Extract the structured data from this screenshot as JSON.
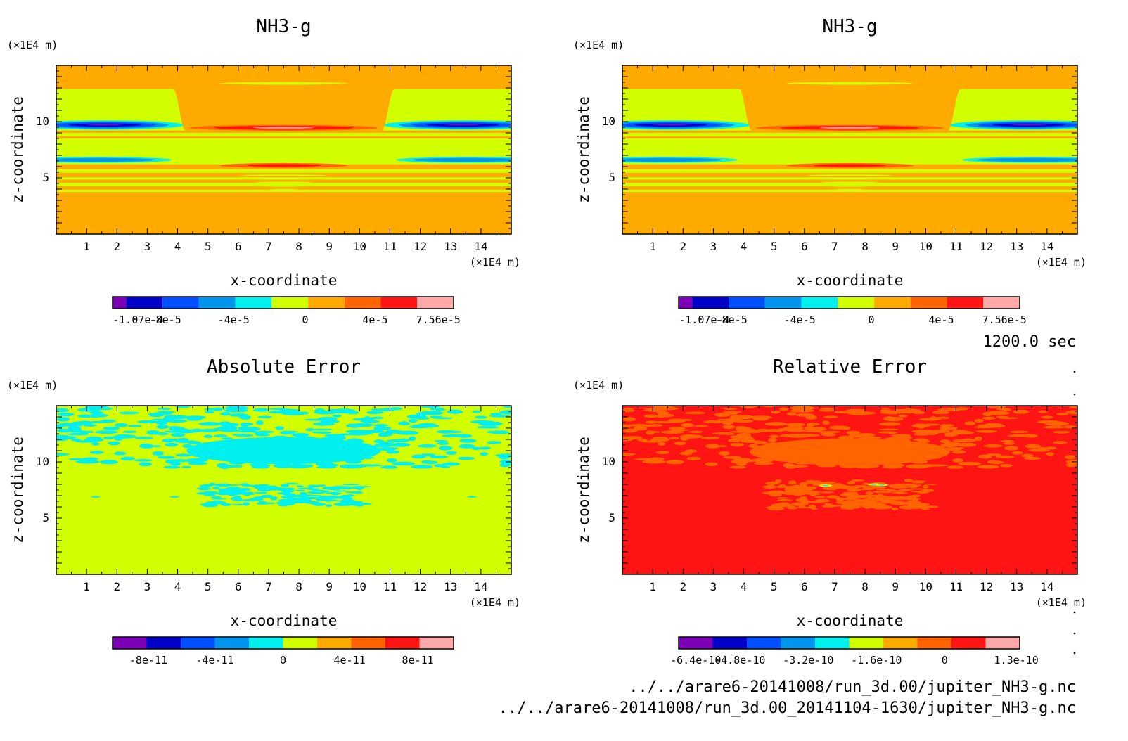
{
  "time_label": "1200.0 sec",
  "footer": [
    "../../arare6-20141008/run_3d.00/jupiter_NH3-g.nc",
    "../../arare6-20141008/run_3d.00_20141104-1630/jupiter_NH3-g.nc"
  ],
  "colors": {
    "purple": "#7b00b8",
    "navy": "#0000c8",
    "blue": "#0050ff",
    "sky": "#0096f0",
    "cyan": "#00f0f0",
    "yellowgreen": "#d2ff00",
    "orange": "#ffaa00",
    "orangered": "#ff6400",
    "red": "#ff1414",
    "pink": "#ffaaaa"
  },
  "chart_data": [
    {
      "type": "heatmap",
      "title": "NH3-g",
      "xlabel": "x-coordinate",
      "ylabel": "z-coordinate",
      "x_unit": "(×1E4 m)",
      "y_unit": "(×1E4 m)",
      "xlim": [
        0,
        15
      ],
      "ylim": [
        0,
        15
      ],
      "x_ticks": [
        1,
        2,
        3,
        4,
        5,
        6,
        7,
        8,
        9,
        10,
        11,
        12,
        13,
        14
      ],
      "y_ticks": [
        5,
        10
      ],
      "colorbar": {
        "levels": 9,
        "colors": [
          "purple",
          "navy",
          "blue",
          "sky",
          "cyan",
          "yellowgreen",
          "orange",
          "orangered",
          "red",
          "pink"
        ],
        "labels": [
          "-1.07e-4",
          "-8e-5",
          "-4e-5",
          "0",
          "4e-5",
          "7.56e-5"
        ]
      },
      "pattern": "field"
    },
    {
      "type": "heatmap",
      "title": "NH3-g",
      "xlabel": "x-coordinate",
      "ylabel": "z-coordinate",
      "x_unit": "(×1E4 m)",
      "y_unit": "(×1E4 m)",
      "xlim": [
        0,
        15
      ],
      "ylim": [
        0,
        15
      ],
      "x_ticks": [
        1,
        2,
        3,
        4,
        5,
        6,
        7,
        8,
        9,
        10,
        11,
        12,
        13,
        14
      ],
      "y_ticks": [
        5,
        10
      ],
      "colorbar": {
        "levels": 9,
        "colors": [
          "purple",
          "navy",
          "blue",
          "sky",
          "cyan",
          "yellowgreen",
          "orange",
          "orangered",
          "red",
          "pink"
        ],
        "labels": [
          "-1.07e-4",
          "-8e-5",
          "-4e-5",
          "0",
          "4e-5",
          "7.56e-5"
        ]
      },
      "pattern": "field"
    },
    {
      "type": "heatmap",
      "title": "Absolute Error",
      "xlabel": "x-coordinate",
      "ylabel": "z-coordinate",
      "x_unit": "(×1E4 m)",
      "y_unit": "(×1E4 m)",
      "xlim": [
        0,
        15
      ],
      "ylim": [
        0,
        15
      ],
      "x_ticks": [
        1,
        2,
        3,
        4,
        5,
        6,
        7,
        8,
        9,
        10,
        11,
        12,
        13,
        14
      ],
      "y_ticks": [
        5,
        10
      ],
      "colorbar": {
        "levels": 9,
        "colors": [
          "purple",
          "navy",
          "blue",
          "sky",
          "cyan",
          "yellowgreen",
          "orange",
          "orangered",
          "red",
          "pink"
        ],
        "labels": [
          "-8e-11",
          "-4e-11",
          "0",
          "4e-11",
          "8e-11"
        ]
      },
      "pattern": "abs"
    },
    {
      "type": "heatmap",
      "title": "Relative Error",
      "xlabel": "x-coordinate",
      "ylabel": "z-coordinate",
      "x_unit": "(×1E4 m)",
      "y_unit": "(×1E4 m)",
      "xlim": [
        0,
        15
      ],
      "ylim": [
        0,
        15
      ],
      "x_ticks": [
        1,
        2,
        3,
        4,
        5,
        6,
        7,
        8,
        9,
        10,
        11,
        12,
        13,
        14
      ],
      "y_ticks": [
        5,
        10
      ],
      "colorbar": {
        "levels": 9,
        "colors": [
          "purple",
          "navy",
          "blue",
          "sky",
          "cyan",
          "yellowgreen",
          "orange",
          "orangered",
          "red",
          "pink"
        ],
        "labels": [
          "-6.4e-10",
          "-4.8e-10",
          "-3.2e-10",
          "-1.6e-10",
          "0",
          "1.3e-10"
        ]
      },
      "pattern": "rel"
    }
  ]
}
